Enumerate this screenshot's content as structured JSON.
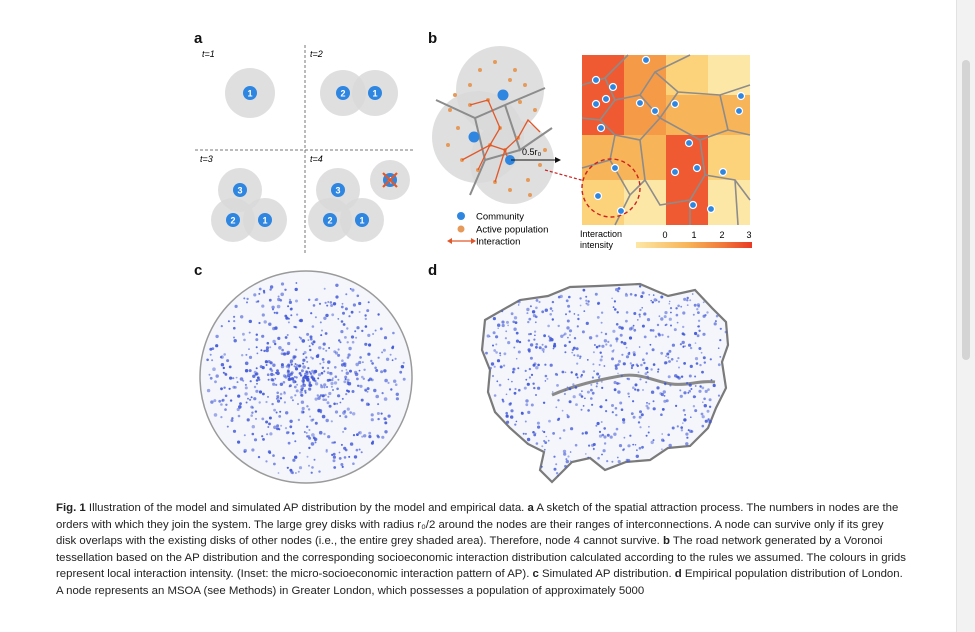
{
  "panels": {
    "a": {
      "label": "a",
      "steps": [
        "t=1",
        "t=2",
        "t=3",
        "t=4"
      ],
      "node_numbers": [
        "1",
        "2",
        "3",
        "4"
      ]
    },
    "b": {
      "label": "b",
      "radius_label": "0.5r₀",
      "legend": [
        "Community",
        "Active population",
        "Interaction"
      ],
      "colorbar_title_line1": "Interaction",
      "colorbar_title_line2": "intensity",
      "colorbar_ticks": [
        "0",
        "1",
        "2",
        "3"
      ],
      "colors": {
        "community": "#3b8fe0",
        "active_population": "#e69a5a",
        "interaction": "#e0582a",
        "circle": "#d9d9d9"
      }
    },
    "c": {
      "label": "c",
      "point_color": "#3f56d6"
    },
    "d": {
      "label": "d",
      "point_color": "#3f56d6",
      "border_color": "#7a7a7a"
    }
  },
  "caption": {
    "fig_label": "Fig. 1",
    "lines": [
      {
        "bold": "Fig. 1",
        "text": " Illustration of the model and simulated AP distribution by the model and empirical data. "
      },
      {
        "bold": "a",
        "text": " A sketch of the spatial attraction process. The numbers in nodes are the orders with which they join the system. The large grey disks with radius r₀/2 around the nodes are their ranges of interconnections. A node can survive only if its grey disk overlaps with the existing disks of other nodes (i.e., the entire grey shaded area). Therefore, node 4 cannot survive. "
      },
      {
        "bold": "b",
        "text": " The road network generated by a Voronoi tessellation based on the AP distribution and the corresponding socioeconomic interaction distribution calculated according to the rules we assumed. The colours in grids represent local interaction intensity. (Inset: the micro-socioeconomic interaction pattern of AP). "
      },
      {
        "bold": "c",
        "text": " Simulated AP distribution. "
      },
      {
        "bold": "d",
        "text": " Empirical population distribution of London. A node represents an MSOA (see Methods) in Greater London, which possesses a population of approximately 5000"
      }
    ]
  }
}
